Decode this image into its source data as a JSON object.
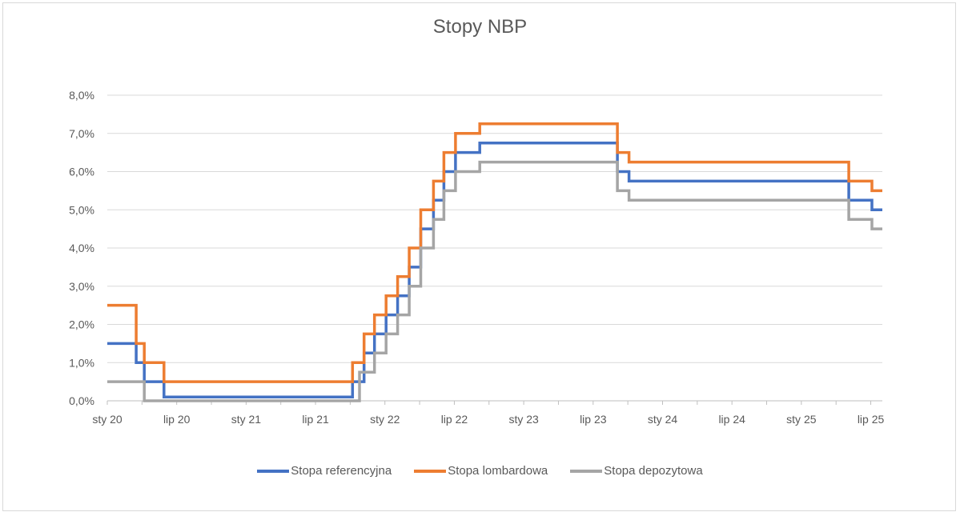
{
  "chart_data": {
    "type": "line",
    "title": "Stopy NBP",
    "xlabel": "",
    "ylabel": "",
    "ylim": [
      0,
      8
    ],
    "yticks": [
      0,
      1,
      2,
      3,
      4,
      5,
      6,
      7,
      8
    ],
    "ytick_labels": [
      "0,0%",
      "1,0%",
      "2,0%",
      "3,0%",
      "4,0%",
      "5,0%",
      "6,0%",
      "7,0%",
      "8,0%"
    ],
    "xlim": [
      0,
      67
    ],
    "xticks": [
      0,
      6,
      12,
      18,
      24,
      30,
      36,
      42,
      48,
      54,
      60,
      66
    ],
    "xtick_labels": [
      "sty 20",
      "lip 20",
      "sty 21",
      "lip 21",
      "sty 22",
      "lip 22",
      "sty 23",
      "lip 23",
      "sty 24",
      "lip 24",
      "sty 25",
      "lip 25"
    ],
    "step": true,
    "series": [
      {
        "name": "Stopa referencyjna",
        "color": "#4472C4",
        "points": [
          [
            0,
            1.5
          ],
          [
            2.5,
            1.5
          ],
          [
            2.5,
            1.0
          ],
          [
            3.2,
            1.0
          ],
          [
            3.2,
            0.5
          ],
          [
            4.9,
            0.5
          ],
          [
            4.9,
            0.1
          ],
          [
            21.2,
            0.1
          ],
          [
            21.2,
            0.5
          ],
          [
            22.2,
            0.5
          ],
          [
            22.2,
            1.25
          ],
          [
            23.1,
            1.25
          ],
          [
            23.1,
            1.75
          ],
          [
            24.1,
            1.75
          ],
          [
            24.1,
            2.25
          ],
          [
            25.1,
            2.25
          ],
          [
            25.1,
            2.75
          ],
          [
            26.1,
            2.75
          ],
          [
            26.1,
            3.5
          ],
          [
            27.1,
            3.5
          ],
          [
            27.1,
            4.5
          ],
          [
            28.2,
            4.5
          ],
          [
            28.2,
            5.25
          ],
          [
            29.1,
            5.25
          ],
          [
            29.1,
            6.0
          ],
          [
            30.1,
            6.0
          ],
          [
            30.1,
            6.5
          ],
          [
            32.2,
            6.5
          ],
          [
            32.2,
            6.75
          ],
          [
            44.1,
            6.75
          ],
          [
            44.1,
            6.0
          ],
          [
            45.1,
            6.0
          ],
          [
            45.1,
            5.75
          ],
          [
            64.1,
            5.75
          ],
          [
            64.1,
            5.25
          ],
          [
            66.1,
            5.25
          ],
          [
            66.1,
            5.0
          ],
          [
            67,
            5.0
          ]
        ]
      },
      {
        "name": "Stopa lombardowa",
        "color": "#ED7D31",
        "points": [
          [
            0,
            2.5
          ],
          [
            2.5,
            2.5
          ],
          [
            2.5,
            1.5
          ],
          [
            3.2,
            1.5
          ],
          [
            3.2,
            1.0
          ],
          [
            4.9,
            1.0
          ],
          [
            4.9,
            0.5
          ],
          [
            21.2,
            0.5
          ],
          [
            21.2,
            1.0
          ],
          [
            22.2,
            1.0
          ],
          [
            22.2,
            1.75
          ],
          [
            23.1,
            1.75
          ],
          [
            23.1,
            2.25
          ],
          [
            24.1,
            2.25
          ],
          [
            24.1,
            2.75
          ],
          [
            25.1,
            2.75
          ],
          [
            25.1,
            3.25
          ],
          [
            26.1,
            3.25
          ],
          [
            26.1,
            4.0
          ],
          [
            27.1,
            4.0
          ],
          [
            27.1,
            5.0
          ],
          [
            28.2,
            5.0
          ],
          [
            28.2,
            5.75
          ],
          [
            29.1,
            5.75
          ],
          [
            29.1,
            6.5
          ],
          [
            30.1,
            6.5
          ],
          [
            30.1,
            7.0
          ],
          [
            32.2,
            7.0
          ],
          [
            32.2,
            7.25
          ],
          [
            44.1,
            7.25
          ],
          [
            44.1,
            6.5
          ],
          [
            45.1,
            6.5
          ],
          [
            45.1,
            6.25
          ],
          [
            64.1,
            6.25
          ],
          [
            64.1,
            5.75
          ],
          [
            66.1,
            5.75
          ],
          [
            66.1,
            5.5
          ],
          [
            67,
            5.5
          ]
        ]
      },
      {
        "name": "Stopa depozytowa",
        "color": "#A5A5A5",
        "points": [
          [
            0,
            0.5
          ],
          [
            3.2,
            0.5
          ],
          [
            3.2,
            0.0
          ],
          [
            21.8,
            0.0
          ],
          [
            21.8,
            0.75
          ],
          [
            23.1,
            0.75
          ],
          [
            23.1,
            1.25
          ],
          [
            24.1,
            1.25
          ],
          [
            24.1,
            1.75
          ],
          [
            25.1,
            1.75
          ],
          [
            25.1,
            2.25
          ],
          [
            26.1,
            2.25
          ],
          [
            26.1,
            3.0
          ],
          [
            27.1,
            3.0
          ],
          [
            27.1,
            4.0
          ],
          [
            28.2,
            4.0
          ],
          [
            28.2,
            4.75
          ],
          [
            29.1,
            4.75
          ],
          [
            29.1,
            5.5
          ],
          [
            30.1,
            5.5
          ],
          [
            30.1,
            6.0
          ],
          [
            32.2,
            6.0
          ],
          [
            32.2,
            6.25
          ],
          [
            44.1,
            6.25
          ],
          [
            44.1,
            5.5
          ],
          [
            45.1,
            5.5
          ],
          [
            45.1,
            5.25
          ],
          [
            64.1,
            5.25
          ],
          [
            64.1,
            4.75
          ],
          [
            66.1,
            4.75
          ],
          [
            66.1,
            4.5
          ],
          [
            67,
            4.5
          ]
        ]
      }
    ],
    "legend_position": "bottom",
    "grid": true
  }
}
